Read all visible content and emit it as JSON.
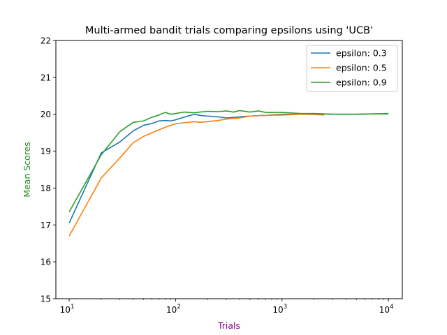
{
  "chart_data": {
    "type": "line",
    "title": "Multi-armed bandit trials comparing epsilons using 'UCB'",
    "xlabel": "Trials",
    "ylabel": "Mean Scores",
    "xlabel_color": "#800080",
    "ylabel_color": "#228b22",
    "x_scale": "log",
    "xlim": [
      7.5,
      13500
    ],
    "ylim": [
      15,
      22
    ],
    "x_ticks": [
      {
        "value": 10,
        "base": "10",
        "exp": "1"
      },
      {
        "value": 100,
        "base": "10",
        "exp": "2"
      },
      {
        "value": 1000,
        "base": "10",
        "exp": "3"
      },
      {
        "value": 10000,
        "base": "10",
        "exp": "4"
      }
    ],
    "y_ticks": [
      "15",
      "16",
      "17",
      "18",
      "19",
      "20",
      "21",
      "22"
    ],
    "grid": false,
    "legend_position": "top-right",
    "series": [
      {
        "name": "epsilon: 0.3",
        "color": "#1f77b4",
        "x": [
          10,
          20,
          30,
          40,
          50,
          60,
          70,
          80,
          90,
          100,
          120,
          150,
          170,
          200,
          250,
          300,
          400,
          500,
          700,
          1000,
          1500,
          2000,
          3000,
          5000,
          7000,
          10000
        ],
        "y": [
          17.05,
          18.95,
          19.25,
          19.55,
          19.7,
          19.75,
          19.82,
          19.83,
          19.82,
          19.85,
          19.92,
          20.0,
          19.97,
          19.95,
          19.93,
          19.9,
          19.93,
          19.95,
          19.97,
          20.0,
          20.0,
          20.02,
          20.0,
          20.0,
          20.01,
          20.01
        ]
      },
      {
        "name": "epsilon: 0.5",
        "color": "#ff7f0e",
        "x": [
          10,
          20,
          30,
          40,
          50,
          60,
          70,
          80,
          90,
          100,
          120,
          150,
          170,
          200,
          250,
          300,
          400,
          500,
          700,
          1000,
          1500,
          2000,
          2500
        ],
        "y": [
          16.7,
          18.27,
          18.82,
          19.23,
          19.4,
          19.5,
          19.58,
          19.65,
          19.7,
          19.74,
          19.77,
          19.8,
          19.78,
          19.8,
          19.83,
          19.87,
          19.9,
          19.95,
          19.97,
          19.98,
          20.0,
          19.99,
          19.98
        ]
      },
      {
        "name": "epsilon: 0.9",
        "color": "#2ca02c",
        "x": [
          10,
          20,
          30,
          40,
          50,
          60,
          70,
          80,
          90,
          100,
          120,
          150,
          170,
          200,
          250,
          300,
          350,
          400,
          500,
          600,
          700,
          1000,
          1500,
          2000,
          3000,
          5000,
          7000,
          10000
        ],
        "y": [
          17.35,
          18.9,
          19.53,
          19.78,
          19.82,
          19.92,
          19.98,
          20.05,
          20.0,
          20.02,
          20.06,
          20.04,
          20.06,
          20.08,
          20.07,
          20.09,
          20.06,
          20.1,
          20.06,
          20.09,
          20.05,
          20.05,
          20.02,
          20.02,
          20.0,
          20.0,
          20.01,
          20.02
        ]
      }
    ]
  }
}
